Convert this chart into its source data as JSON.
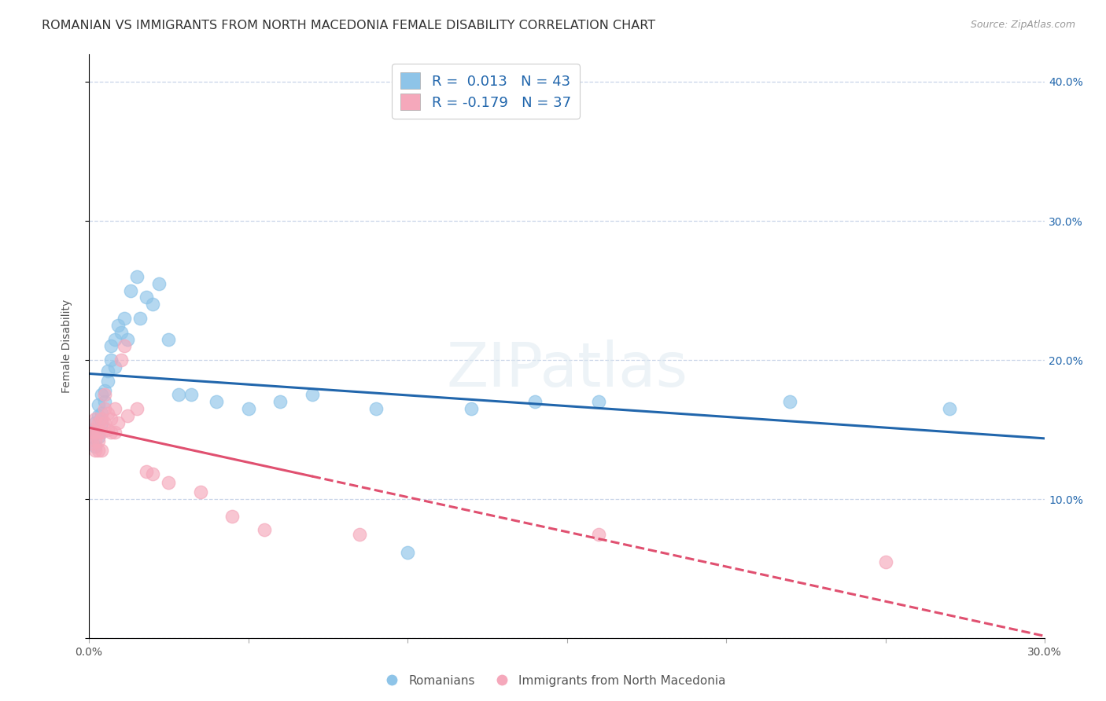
{
  "title": "ROMANIAN VS IMMIGRANTS FROM NORTH MACEDONIA FEMALE DISABILITY CORRELATION CHART",
  "source": "Source: ZipAtlas.com",
  "ylabel": "Female Disability",
  "xlim": [
    0.0,
    0.3
  ],
  "ylim": [
    0.0,
    0.42
  ],
  "romanians_R": "0.013",
  "romanians_N": "43",
  "immigrants_R": "-0.179",
  "immigrants_N": "37",
  "blue_color": "#8ec4e8",
  "pink_color": "#f5a8bb",
  "blue_line_color": "#2166ac",
  "pink_line_color": "#e05070",
  "legend_label_blue": "Romanians",
  "legend_label_pink": "Immigrants from North Macedonia",
  "romanians_x": [
    0.001,
    0.001,
    0.002,
    0.002,
    0.002,
    0.003,
    0.003,
    0.003,
    0.004,
    0.004,
    0.004,
    0.005,
    0.005,
    0.006,
    0.006,
    0.007,
    0.007,
    0.008,
    0.008,
    0.009,
    0.01,
    0.011,
    0.012,
    0.013,
    0.015,
    0.016,
    0.018,
    0.02,
    0.022,
    0.025,
    0.028,
    0.032,
    0.04,
    0.05,
    0.06,
    0.07,
    0.09,
    0.1,
    0.12,
    0.14,
    0.16,
    0.22,
    0.27
  ],
  "romanians_y": [
    0.145,
    0.15,
    0.138,
    0.155,
    0.148,
    0.16,
    0.145,
    0.168,
    0.175,
    0.162,
    0.155,
    0.17,
    0.178,
    0.185,
    0.192,
    0.2,
    0.21,
    0.195,
    0.215,
    0.225,
    0.22,
    0.23,
    0.215,
    0.25,
    0.26,
    0.23,
    0.245,
    0.24,
    0.255,
    0.215,
    0.175,
    0.175,
    0.17,
    0.165,
    0.17,
    0.175,
    0.165,
    0.062,
    0.165,
    0.17,
    0.17,
    0.17,
    0.165
  ],
  "immigrants_x": [
    0.001,
    0.001,
    0.001,
    0.002,
    0.002,
    0.002,
    0.002,
    0.003,
    0.003,
    0.003,
    0.003,
    0.004,
    0.004,
    0.004,
    0.005,
    0.005,
    0.005,
    0.006,
    0.006,
    0.007,
    0.007,
    0.008,
    0.008,
    0.009,
    0.01,
    0.011,
    0.012,
    0.015,
    0.018,
    0.02,
    0.025,
    0.035,
    0.045,
    0.055,
    0.085,
    0.16,
    0.25
  ],
  "immigrants_y": [
    0.15,
    0.148,
    0.14,
    0.158,
    0.148,
    0.142,
    0.135,
    0.155,
    0.148,
    0.142,
    0.135,
    0.158,
    0.148,
    0.135,
    0.175,
    0.165,
    0.155,
    0.162,
    0.15,
    0.158,
    0.148,
    0.165,
    0.148,
    0.155,
    0.2,
    0.21,
    0.16,
    0.165,
    0.12,
    0.118,
    0.112,
    0.105,
    0.088,
    0.078,
    0.075,
    0.075,
    0.055
  ],
  "watermark_text": "ZIPatlas",
  "title_fontsize": 11.5,
  "axis_label_fontsize": 10,
  "tick_fontsize": 10,
  "background_color": "#ffffff",
  "grid_color": "#c8d4e8",
  "right_ytick_color": "#2166ac"
}
